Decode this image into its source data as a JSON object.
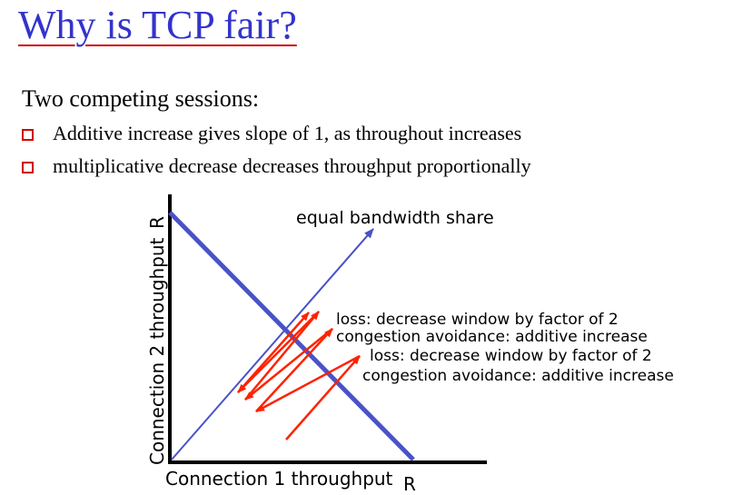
{
  "slide": {
    "title": "Why is TCP fair?",
    "subtitle": "Two competing sessions:",
    "bullets": [
      "Additive increase gives slope of 1, as throughout increases",
      "multiplicative decrease decreases throughput proportionally"
    ]
  },
  "diagram": {
    "y_axis_label": "Connection 2 throughput",
    "x_axis_label": "Connection 1 throughput",
    "y_max_label": "R",
    "x_max_label": "R",
    "equal_share_label": "equal bandwidth share",
    "annotations": [
      "loss: decrease window by factor of 2",
      "congestion avoidance: additive increase",
      "loss: decrease window by factor of 2",
      "congestion avoidance: additive increase"
    ]
  },
  "colors": {
    "title": "#3333cc",
    "title_underline": "#cc0000",
    "bullet_marker": "#cc0000",
    "capacity_line": "#4a52c8",
    "equal_share_line": "#4a52c8",
    "trajectory": "#ff2200"
  }
}
